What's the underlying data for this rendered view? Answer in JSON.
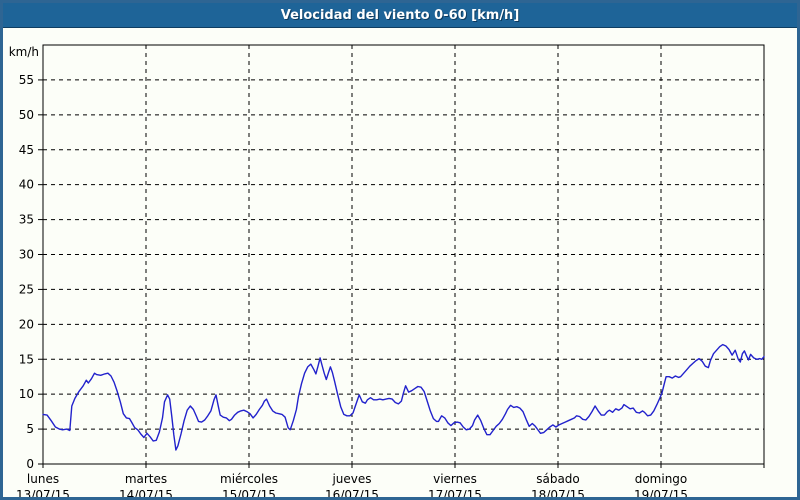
{
  "window": {
    "title": "Velocidad del viento 0-60 [km/h]"
  },
  "colors": {
    "titlebar_bg": "#1E6498",
    "frame_border": "#2E6593",
    "chart_bg": "#FCFEF8",
    "plot_border": "#000000",
    "grid": "#000000",
    "axis_text": "#000000",
    "series_line": "#2222CC",
    "title_text": "#FFFFFF"
  },
  "chart_data": {
    "type": "line",
    "title": "Velocidad del viento 0-60 [km/h]",
    "xlabel": "",
    "ylabel": "km/h",
    "ylim": [
      0,
      60
    ],
    "ytick_step": 5,
    "ytick_label_max": 55,
    "xlim_days": [
      0,
      7
    ],
    "grid": "dashed",
    "legend_position": "none",
    "x_days": [
      {
        "name": "lunes",
        "date": "13/07/15"
      },
      {
        "name": "martes",
        "date": "14/07/15"
      },
      {
        "name": "miércoles",
        "date": "15/07/15"
      },
      {
        "name": "jueves",
        "date": "16/07/15"
      },
      {
        "name": "viernes",
        "date": "17/07/15"
      },
      {
        "name": "sábado",
        "date": "18/07/15"
      },
      {
        "name": "domingo",
        "date": "19/07/15"
      }
    ],
    "series": [
      {
        "name": "Velocidad del viento [km/h]",
        "color": "#2222CC",
        "points": [
          [
            0.0,
            7.1
          ],
          [
            0.04,
            7.0
          ],
          [
            0.08,
            6.2
          ],
          [
            0.12,
            5.3
          ],
          [
            0.16,
            5.0
          ],
          [
            0.19,
            4.9
          ],
          [
            0.23,
            5.0
          ],
          [
            0.26,
            4.8
          ],
          [
            0.28,
            8.3
          ],
          [
            0.31,
            9.4
          ],
          [
            0.35,
            10.4
          ],
          [
            0.39,
            11.2
          ],
          [
            0.42,
            12.0
          ],
          [
            0.44,
            11.6
          ],
          [
            0.47,
            12.2
          ],
          [
            0.5,
            13.0
          ],
          [
            0.52,
            12.8
          ],
          [
            0.56,
            12.7
          ],
          [
            0.6,
            12.9
          ],
          [
            0.63,
            13.0
          ],
          [
            0.66,
            12.6
          ],
          [
            0.69,
            11.7
          ],
          [
            0.72,
            10.4
          ],
          [
            0.75,
            8.9
          ],
          [
            0.78,
            7.2
          ],
          [
            0.81,
            6.6
          ],
          [
            0.84,
            6.5
          ],
          [
            0.86,
            6.0
          ],
          [
            0.89,
            5.2
          ],
          [
            0.92,
            4.9
          ],
          [
            0.95,
            4.3
          ],
          [
            0.98,
            3.8
          ],
          [
            1.01,
            4.4
          ],
          [
            1.04,
            3.9
          ],
          [
            1.07,
            3.3
          ],
          [
            1.1,
            3.4
          ],
          [
            1.13,
            4.6
          ],
          [
            1.16,
            6.6
          ],
          [
            1.18,
            8.9
          ],
          [
            1.21,
            9.9
          ],
          [
            1.23,
            9.3
          ],
          [
            1.25,
            6.8
          ],
          [
            1.27,
            4.2
          ],
          [
            1.29,
            2.0
          ],
          [
            1.31,
            2.6
          ],
          [
            1.34,
            4.3
          ],
          [
            1.37,
            6.2
          ],
          [
            1.4,
            7.7
          ],
          [
            1.43,
            8.3
          ],
          [
            1.46,
            7.8
          ],
          [
            1.49,
            6.8
          ],
          [
            1.51,
            6.1
          ],
          [
            1.54,
            6.0
          ],
          [
            1.57,
            6.3
          ],
          [
            1.6,
            6.9
          ],
          [
            1.63,
            7.6
          ],
          [
            1.66,
            9.2
          ],
          [
            1.68,
            9.9
          ],
          [
            1.7,
            8.4
          ],
          [
            1.72,
            7.0
          ],
          [
            1.75,
            6.7
          ],
          [
            1.78,
            6.6
          ],
          [
            1.81,
            6.2
          ],
          [
            1.83,
            6.4
          ],
          [
            1.86,
            7.0
          ],
          [
            1.89,
            7.4
          ],
          [
            1.92,
            7.6
          ],
          [
            1.95,
            7.7
          ],
          [
            1.98,
            7.5
          ],
          [
            2.01,
            7.2
          ],
          [
            2.04,
            6.6
          ],
          [
            2.07,
            7.1
          ],
          [
            2.1,
            7.8
          ],
          [
            2.13,
            8.4
          ],
          [
            2.15,
            9.0
          ],
          [
            2.17,
            9.3
          ],
          [
            2.2,
            8.3
          ],
          [
            2.23,
            7.6
          ],
          [
            2.26,
            7.3
          ],
          [
            2.29,
            7.2
          ],
          [
            2.32,
            7.1
          ],
          [
            2.35,
            6.7
          ],
          [
            2.38,
            5.2
          ],
          [
            2.4,
            4.9
          ],
          [
            2.43,
            6.2
          ],
          [
            2.46,
            7.8
          ],
          [
            2.48,
            9.6
          ],
          [
            2.51,
            11.5
          ],
          [
            2.54,
            13.0
          ],
          [
            2.57,
            13.9
          ],
          [
            2.6,
            14.3
          ],
          [
            2.63,
            13.5
          ],
          [
            2.65,
            12.9
          ],
          [
            2.67,
            14.0
          ],
          [
            2.69,
            15.2
          ],
          [
            2.71,
            14.1
          ],
          [
            2.73,
            13.0
          ],
          [
            2.75,
            12.1
          ],
          [
            2.77,
            13.0
          ],
          [
            2.79,
            13.9
          ],
          [
            2.81,
            13.1
          ],
          [
            2.83,
            11.9
          ],
          [
            2.86,
            10.0
          ],
          [
            2.89,
            8.2
          ],
          [
            2.92,
            7.1
          ],
          [
            2.95,
            6.9
          ],
          [
            2.98,
            6.9
          ],
          [
            3.01,
            7.3
          ],
          [
            3.04,
            8.6
          ],
          [
            3.07,
            9.9
          ],
          [
            3.1,
            8.9
          ],
          [
            3.13,
            8.7
          ],
          [
            3.15,
            9.2
          ],
          [
            3.18,
            9.5
          ],
          [
            3.21,
            9.2
          ],
          [
            3.24,
            9.2
          ],
          [
            3.27,
            9.3
          ],
          [
            3.3,
            9.2
          ],
          [
            3.33,
            9.3
          ],
          [
            3.36,
            9.4
          ],
          [
            3.39,
            9.3
          ],
          [
            3.42,
            8.8
          ],
          [
            3.45,
            8.6
          ],
          [
            3.48,
            9.0
          ],
          [
            3.5,
            10.2
          ],
          [
            3.52,
            11.2
          ],
          [
            3.55,
            10.3
          ],
          [
            3.58,
            10.5
          ],
          [
            3.61,
            10.8
          ],
          [
            3.64,
            11.1
          ],
          [
            3.67,
            11.0
          ],
          [
            3.7,
            10.4
          ],
          [
            3.73,
            9.0
          ],
          [
            3.76,
            7.6
          ],
          [
            3.79,
            6.5
          ],
          [
            3.82,
            6.1
          ],
          [
            3.84,
            6.1
          ],
          [
            3.87,
            6.9
          ],
          [
            3.9,
            6.6
          ],
          [
            3.93,
            5.9
          ],
          [
            3.96,
            5.5
          ],
          [
            3.99,
            5.9
          ],
          [
            4.02,
            6.0
          ],
          [
            4.05,
            5.9
          ],
          [
            4.08,
            5.3
          ],
          [
            4.11,
            4.9
          ],
          [
            4.14,
            5.0
          ],
          [
            4.17,
            5.5
          ],
          [
            4.19,
            6.3
          ],
          [
            4.22,
            7.0
          ],
          [
            4.25,
            6.2
          ],
          [
            4.28,
            5.1
          ],
          [
            4.31,
            4.2
          ],
          [
            4.34,
            4.2
          ],
          [
            4.37,
            4.8
          ],
          [
            4.4,
            5.4
          ],
          [
            4.43,
            5.8
          ],
          [
            4.46,
            6.4
          ],
          [
            4.49,
            7.2
          ],
          [
            4.51,
            7.8
          ],
          [
            4.54,
            8.4
          ],
          [
            4.57,
            8.1
          ],
          [
            4.6,
            8.2
          ],
          [
            4.63,
            8.0
          ],
          [
            4.66,
            7.5
          ],
          [
            4.69,
            6.4
          ],
          [
            4.72,
            5.4
          ],
          [
            4.75,
            5.8
          ],
          [
            4.78,
            5.4
          ],
          [
            4.81,
            4.8
          ],
          [
            4.83,
            4.4
          ],
          [
            4.86,
            4.5
          ],
          [
            4.89,
            4.9
          ],
          [
            4.92,
            5.3
          ],
          [
            4.95,
            5.6
          ],
          [
            4.98,
            5.3
          ],
          [
            5.01,
            5.6
          ],
          [
            5.04,
            5.8
          ],
          [
            5.07,
            6.0
          ],
          [
            5.1,
            6.2
          ],
          [
            5.13,
            6.4
          ],
          [
            5.16,
            6.6
          ],
          [
            5.18,
            6.9
          ],
          [
            5.21,
            6.8
          ],
          [
            5.24,
            6.4
          ],
          [
            5.27,
            6.3
          ],
          [
            5.3,
            6.8
          ],
          [
            5.33,
            7.5
          ],
          [
            5.36,
            8.3
          ],
          [
            5.39,
            7.6
          ],
          [
            5.42,
            7.0
          ],
          [
            5.45,
            7.0
          ],
          [
            5.48,
            7.5
          ],
          [
            5.5,
            7.7
          ],
          [
            5.53,
            7.4
          ],
          [
            5.56,
            7.9
          ],
          [
            5.59,
            7.7
          ],
          [
            5.62,
            8.0
          ],
          [
            5.64,
            8.5
          ],
          [
            5.67,
            8.2
          ],
          [
            5.7,
            7.9
          ],
          [
            5.73,
            8.0
          ],
          [
            5.76,
            7.4
          ],
          [
            5.79,
            7.3
          ],
          [
            5.82,
            7.6
          ],
          [
            5.84,
            7.4
          ],
          [
            5.87,
            6.9
          ],
          [
            5.9,
            7.0
          ],
          [
            5.93,
            7.6
          ],
          [
            5.96,
            8.5
          ],
          [
            5.99,
            9.5
          ],
          [
            6.01,
            10.2
          ],
          [
            6.03,
            11.4
          ],
          [
            6.05,
            12.5
          ],
          [
            6.08,
            12.5
          ],
          [
            6.11,
            12.3
          ],
          [
            6.14,
            12.6
          ],
          [
            6.17,
            12.4
          ],
          [
            6.19,
            12.5
          ],
          [
            6.22,
            13.0
          ],
          [
            6.25,
            13.5
          ],
          [
            6.28,
            14.0
          ],
          [
            6.31,
            14.4
          ],
          [
            6.34,
            14.8
          ],
          [
            6.37,
            15.1
          ],
          [
            6.4,
            14.7
          ],
          [
            6.43,
            14.0
          ],
          [
            6.46,
            13.8
          ],
          [
            6.48,
            14.8
          ],
          [
            6.51,
            15.8
          ],
          [
            6.54,
            16.3
          ],
          [
            6.57,
            16.8
          ],
          [
            6.6,
            17.1
          ],
          [
            6.63,
            16.9
          ],
          [
            6.66,
            16.4
          ],
          [
            6.69,
            15.6
          ],
          [
            6.72,
            16.3
          ],
          [
            6.75,
            15.0
          ],
          [
            6.77,
            14.6
          ],
          [
            6.79,
            15.8
          ],
          [
            6.81,
            16.2
          ],
          [
            6.83,
            15.5
          ],
          [
            6.85,
            14.9
          ],
          [
            6.87,
            15.7
          ],
          [
            6.9,
            15.2
          ],
          [
            6.93,
            15.0
          ],
          [
            6.96,
            15.1
          ],
          [
            6.98,
            15.0
          ],
          [
            7.0,
            15.4
          ]
        ]
      }
    ]
  }
}
